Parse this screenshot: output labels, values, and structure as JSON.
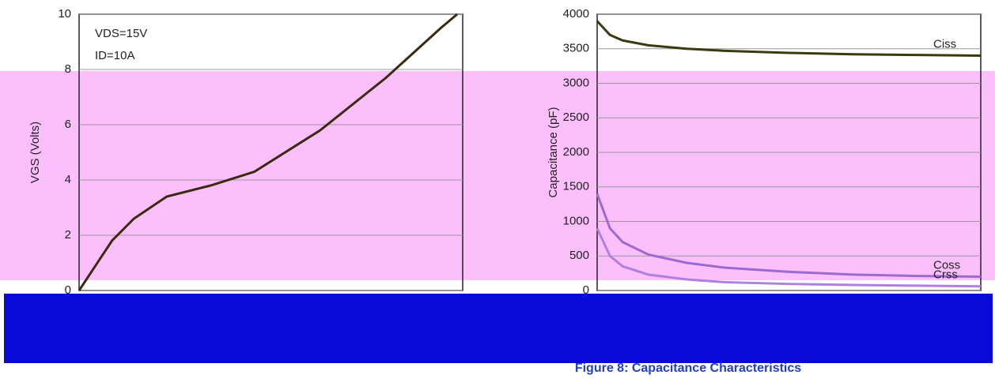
{
  "chart_data": [
    {
      "type": "line",
      "y_label": "VGS (Volts)",
      "annotations": [
        "VDS=15V",
        "ID=10A"
      ],
      "x": [
        0,
        3,
        5,
        8,
        12,
        16,
        22,
        28,
        33,
        34.5
      ],
      "xlim": [
        0,
        35
      ],
      "ylim": [
        0,
        10
      ],
      "yticks": [
        0,
        2,
        4,
        6,
        8,
        10
      ],
      "grid": true,
      "series": [
        {
          "color": "#3a2a10",
          "values": [
            0,
            1.8,
            2.6,
            3.4,
            3.8,
            4.3,
            5.8,
            7.7,
            9.5,
            10
          ]
        }
      ]
    },
    {
      "type": "line",
      "title": "Figure 8: Capacitance Characteristics",
      "y_label": "Capacitance (pF)",
      "x": [
        0,
        1,
        2,
        4,
        7,
        10,
        15,
        20,
        25,
        30
      ],
      "xlim": [
        0,
        30
      ],
      "ylim": [
        0,
        4000
      ],
      "yticks": [
        0,
        500,
        1000,
        1500,
        2000,
        2500,
        3000,
        3500,
        4000
      ],
      "grid": true,
      "series": [
        {
          "name": "Ciss",
          "color": "#3a3a10",
          "values": [
            3900,
            3700,
            3620,
            3550,
            3500,
            3470,
            3440,
            3420,
            3410,
            3400
          ]
        },
        {
          "name": "Coss",
          "color": "#9a6ad0",
          "values": [
            1400,
            900,
            700,
            520,
            400,
            330,
            270,
            230,
            210,
            200
          ]
        },
        {
          "name": "Crss",
          "color": "#b080e0",
          "values": [
            900,
            500,
            350,
            230,
            160,
            120,
            95,
            80,
            70,
            60
          ]
        }
      ]
    }
  ]
}
